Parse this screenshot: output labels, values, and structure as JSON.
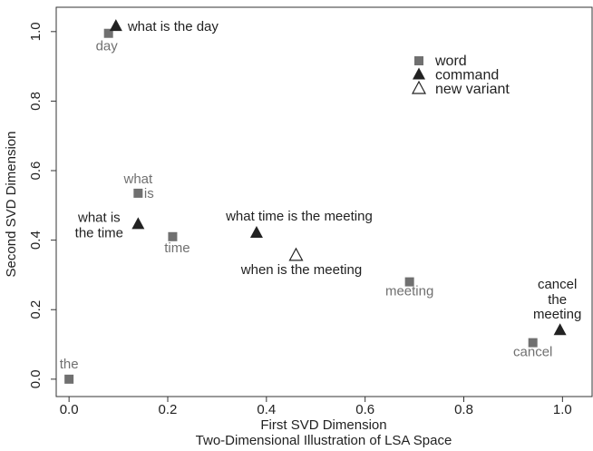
{
  "chart_data": {
    "type": "scatter",
    "xlabel": "First SVD Dimension",
    "ylabel": "Second SVD Dimension",
    "caption": "Two-Dimensional Illustration of LSA Space",
    "xlim": [
      -0.026,
      1.06
    ],
    "ylim": [
      -0.05,
      1.07
    ],
    "xticks": [
      {
        "value": 0,
        "label": "0.0"
      },
      {
        "value": 0.2,
        "label": "0.2"
      },
      {
        "value": 0.4,
        "label": "0.4"
      },
      {
        "value": 0.6,
        "label": "0.6"
      },
      {
        "value": 0.8,
        "label": "0.8"
      },
      {
        "value": 1,
        "label": "1.0"
      }
    ],
    "yticks": [
      {
        "value": 0,
        "label": "0.0"
      },
      {
        "value": 0.2,
        "label": "0.2"
      },
      {
        "value": 0.4,
        "label": "0.4"
      },
      {
        "value": 0.6,
        "label": "0.6"
      },
      {
        "value": 0.8,
        "label": "0.8"
      },
      {
        "value": 1,
        "label": "1.0"
      }
    ],
    "legend": "upper right",
    "series": [
      {
        "name": "word",
        "color": "#707070",
        "marker": "square",
        "x": [
          0.08,
          0.14,
          0.21,
          0.69,
          0.94,
          0.0
        ],
        "values": [
          0.995,
          0.535,
          0.41,
          0.28,
          0.105,
          0.0
        ],
        "labels": [
          [
            "day"
          ],
          [
            "what",
            "is"
          ],
          [
            "time"
          ],
          [
            "meeting"
          ],
          [
            "cancel"
          ],
          [
            "the"
          ]
        ]
      },
      {
        "name": "command",
        "color": "#222222",
        "marker": "triangle",
        "x": [
          0.095,
          0.14,
          0.38,
          0.995
        ],
        "values": [
          1.015,
          0.445,
          0.42,
          0.14
        ],
        "labels": [
          [
            "what is the day"
          ],
          [
            "what is",
            "the time"
          ],
          [
            "what time is the meeting"
          ],
          [
            "cancel",
            "the",
            "meeting"
          ]
        ]
      },
      {
        "name": "new variant",
        "color": "#222222",
        "marker": "open-triangle",
        "x": [
          0.46
        ],
        "values": [
          0.355
        ],
        "labels": [
          [
            "when is the meeting"
          ]
        ]
      }
    ]
  }
}
